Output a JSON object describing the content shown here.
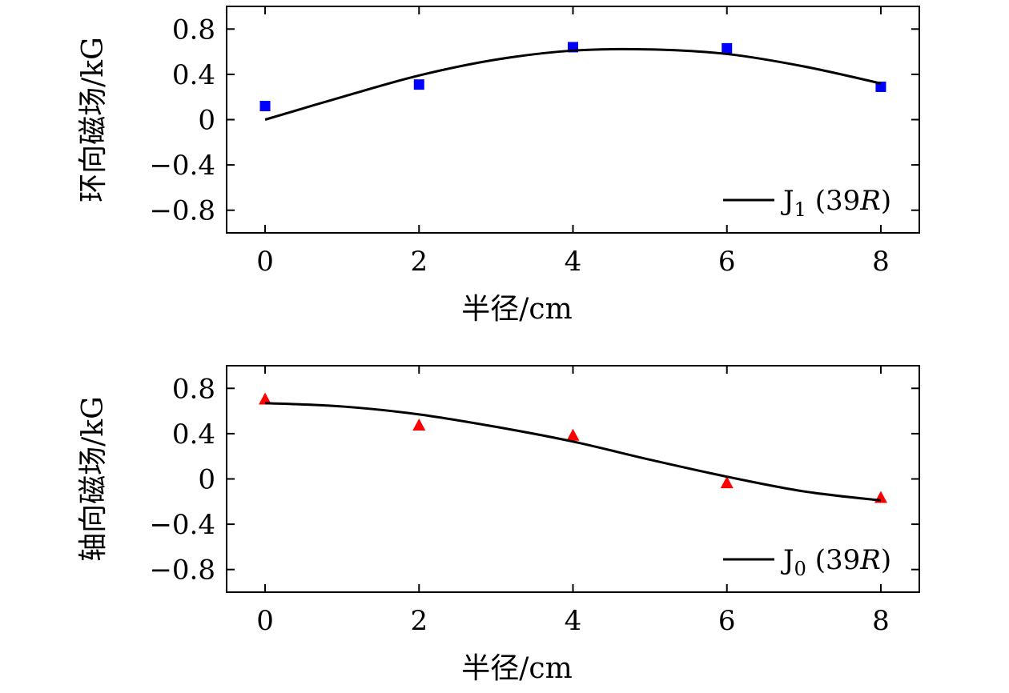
{
  "chart_data": [
    {
      "type": "scatter",
      "xlabel": "半径/cm",
      "ylabel": "环向磁场/kG",
      "xlim": [
        -0.5,
        8.5
      ],
      "ylim": [
        -1.0,
        1.0
      ],
      "xticks": [
        "0",
        "2",
        "4",
        "6",
        "8"
      ],
      "yticks": [
        "0.8",
        "0.4",
        "0",
        "−0.4",
        "−0.8"
      ],
      "grid": false,
      "legend_position": "bottom-right",
      "series": [
        {
          "kind": "scatter",
          "marker": "square",
          "color": "#0000ff",
          "x": [
            0,
            2,
            4,
            6,
            8
          ],
          "y": [
            0.12,
            0.31,
            0.64,
            0.63,
            0.29
          ]
        },
        {
          "kind": "line",
          "color": "#000000",
          "legend": {
            "base": "J",
            "sub": "1",
            "arg_open": " (39",
            "arg_var": "R",
            "arg_close": ")"
          },
          "x": [
            0,
            1,
            2,
            3,
            4,
            5,
            6,
            7,
            8
          ],
          "y": [
            0.0,
            0.2,
            0.39,
            0.53,
            0.61,
            0.62,
            0.58,
            0.47,
            0.32
          ]
        }
      ]
    },
    {
      "type": "scatter",
      "xlabel": "半径/cm",
      "ylabel": "轴向磁场/kG",
      "xlim": [
        -0.5,
        8.5
      ],
      "ylim": [
        -1.0,
        1.0
      ],
      "xticks": [
        "0",
        "2",
        "4",
        "6",
        "8"
      ],
      "yticks": [
        "0.8",
        "0.4",
        "0",
        "−0.4",
        "−0.8"
      ],
      "grid": false,
      "legend_position": "bottom-right",
      "series": [
        {
          "kind": "scatter",
          "marker": "triangle",
          "color": "#ff0000",
          "x": [
            0,
            2,
            4,
            6,
            8
          ],
          "y": [
            0.7,
            0.47,
            0.38,
            -0.04,
            -0.17
          ]
        },
        {
          "kind": "line",
          "color": "#000000",
          "legend": {
            "base": "J",
            "sub": "0",
            "arg_open": " (39",
            "arg_var": "R",
            "arg_close": ")"
          },
          "x": [
            0,
            1,
            2,
            3,
            4,
            5,
            6,
            7,
            8
          ],
          "y": [
            0.67,
            0.64,
            0.57,
            0.46,
            0.33,
            0.17,
            0.02,
            -0.11,
            -0.19
          ]
        }
      ]
    }
  ]
}
